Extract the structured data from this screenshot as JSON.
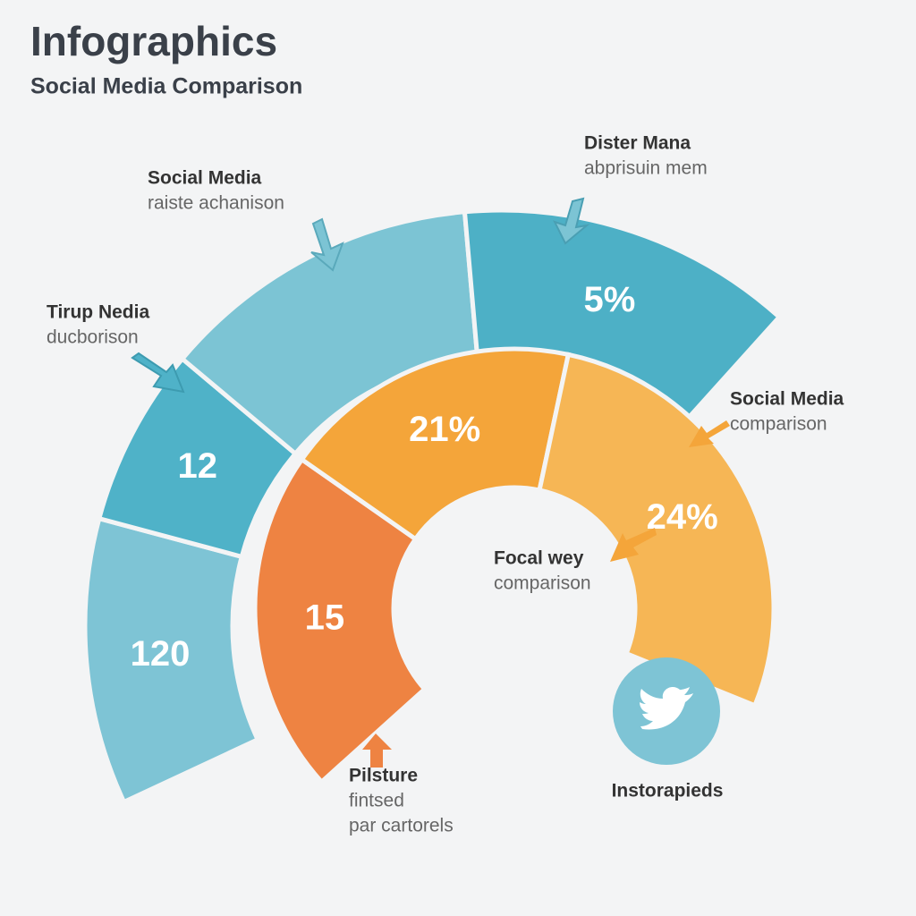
{
  "header": {
    "title": "Infographics",
    "subtitle": "Social Media Comparison"
  },
  "outer_ring": [
    {
      "label": "120",
      "color": "#7ec4d5"
    },
    {
      "label": "12",
      "color": "#4fb2c8"
    },
    {
      "color": "#7cc4d4"
    },
    {
      "label": "5%",
      "color": "#4db0c6"
    }
  ],
  "inner_ring": [
    {
      "label": "15",
      "color": "#ee8342"
    },
    {
      "label": "21%",
      "color": "#f4a53a"
    },
    {
      "label": "24%",
      "color": "#f6b655"
    }
  ],
  "callouts": [
    {
      "title": "Social Media",
      "text": [
        "raiste achanison"
      ]
    },
    {
      "title": "Dister Mana",
      "text": [
        "abprisuin mem"
      ]
    },
    {
      "title": "Tirup Nedia",
      "text": [
        "ducborison"
      ]
    },
    {
      "title": "Social Media",
      "text": [
        "comparison"
      ]
    },
    {
      "title": "Focal wey",
      "text": [
        "comparison"
      ]
    },
    {
      "title": "Pilsture",
      "text": [
        "fintsed",
        "par cartorels"
      ]
    },
    {
      "title": "Instorapieds"
    }
  ]
}
